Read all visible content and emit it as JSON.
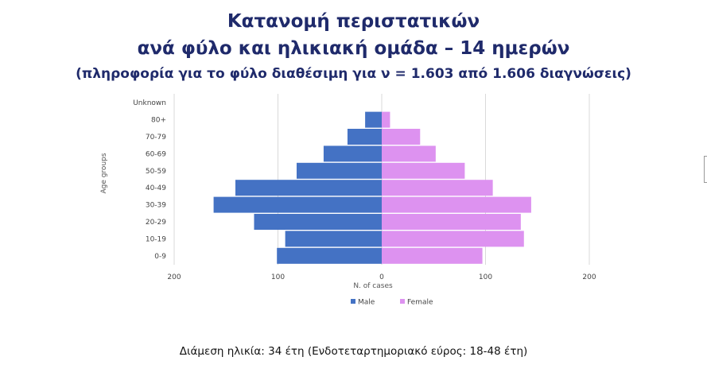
{
  "title": {
    "line1": "Κατανομή περιστατικών",
    "line2": "ανά φύλο και ηλικιακή ομάδα – 14 ημερών",
    "subtitle": "(πληροφορία για το φύλο διαθέσιμη για ν  = 1.603 από 1.606 διαγνώσεις)"
  },
  "note": "Διάμεση ηλικία: 34 έτη (Ενδοτεταρτημοριακό εύρος: 18-48 έτη)",
  "colors": {
    "male": "#4472c4",
    "female": "#dd92f0",
    "title": "#1f2a6b"
  },
  "chart_data": {
    "type": "bar",
    "orientation": "horizontal",
    "layout": "population-pyramid",
    "categories": [
      "Unknown",
      "80+",
      "70-79",
      "60-69",
      "50-59",
      "40-49",
      "30-39",
      "20-29",
      "10-19",
      "0-9"
    ],
    "series": [
      {
        "name": "Male",
        "values": [
          0,
          16,
          33,
          56,
          82,
          141,
          162,
          123,
          93,
          101
        ]
      },
      {
        "name": "Female",
        "values": [
          0,
          8,
          37,
          52,
          80,
          107,
          144,
          134,
          137,
          97
        ]
      }
    ],
    "xlabel": "N. of cases",
    "ylabel": "Age groups",
    "xlim": [
      -200,
      200
    ],
    "x_ticks": [
      -200,
      -100,
      0,
      100,
      200
    ],
    "x_tick_labels": [
      "200",
      "100",
      "0",
      "100",
      "200"
    ],
    "grid": true,
    "legend": "bottom"
  }
}
